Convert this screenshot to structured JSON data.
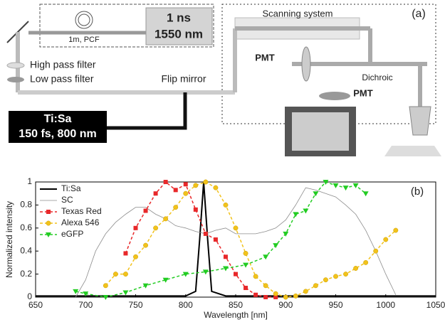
{
  "diagram": {
    "pcf_label": "1m, PCF",
    "source_line1": "1 ns",
    "source_line2": "1550 nm",
    "scanning": "Scanning system",
    "panel": "(a)",
    "high_pass": "High pass filter",
    "low_pass": "Low pass filter",
    "flip_mirror": "Flip mirror",
    "pmt_1": "PMT",
    "pmt_2": "PMT",
    "dichroic": "Dichroic",
    "laser_line1": "Ti:Sa",
    "laser_line2": "150 fs, 800 nm"
  },
  "chart_data": {
    "type": "line",
    "xlabel": "Wavelength [nm]",
    "ylabel": "Normalized intensity",
    "annotation": "(b)",
    "legend": "upper left",
    "xlim": [
      650,
      1050
    ],
    "xticks": [
      650,
      700,
      750,
      800,
      850,
      900,
      950,
      1000,
      1050
    ],
    "ylim": [
      0,
      1
    ],
    "yticks": [
      0,
      0.2,
      0.4,
      0.6,
      0.8,
      1
    ],
    "series": [
      {
        "name": "Ti:Sa",
        "color": "#000000",
        "x": [
          650,
          800,
          810,
          814,
          818,
          822,
          826,
          840,
          1050
        ],
        "values": [
          0.01,
          0.01,
          0.05,
          0.5,
          1,
          0.5,
          0.05,
          0.01,
          0.01
        ]
      },
      {
        "name": "SC",
        "color": "#8c8c8c",
        "x": [
          690,
          700,
          710,
          720,
          730,
          740,
          750,
          760,
          770,
          780,
          790,
          800,
          810,
          820,
          830,
          840,
          850,
          860,
          870,
          880,
          890,
          900,
          910,
          920,
          930,
          940,
          950,
          960,
          970,
          980,
          990,
          1000,
          1010
        ],
        "values": [
          0,
          0.15,
          0.4,
          0.55,
          0.65,
          0.72,
          0.78,
          0.78,
          0.72,
          0.68,
          0.62,
          0.6,
          0.57,
          0.55,
          0.58,
          0.6,
          0.55,
          0.55,
          0.55,
          0.57,
          0.6,
          0.67,
          0.8,
          0.95,
          0.93,
          0.9,
          0.87,
          0.8,
          0.72,
          0.58,
          0.4,
          0.2,
          0.02
        ]
      },
      {
        "name": "Texas Red",
        "color": "#e8282a",
        "x": [
          740,
          750,
          760,
          770,
          780,
          790,
          800,
          810,
          820,
          830,
          840,
          850,
          860,
          870,
          880,
          890
        ],
        "values": [
          0.38,
          0.6,
          0.75,
          0.9,
          1,
          0.93,
          0.98,
          0.76,
          0.55,
          0.5,
          0.35,
          0.2,
          0.08,
          0.02,
          0,
          0
        ]
      },
      {
        "name": "Alexa 546",
        "color": "#f2c21b",
        "x": [
          720,
          730,
          740,
          750,
          760,
          770,
          780,
          790,
          800,
          810,
          820,
          830,
          840,
          850,
          860,
          870,
          880,
          890,
          900,
          910,
          920,
          930,
          940,
          950,
          960,
          970,
          980,
          990,
          1000,
          1010
        ],
        "values": [
          0.1,
          0.2,
          0.2,
          0.35,
          0.45,
          0.6,
          0.68,
          0.78,
          0.9,
          0.97,
          1,
          0.95,
          0.8,
          0.6,
          0.38,
          0.18,
          0.1,
          0.03,
          0,
          0.01,
          0.05,
          0.1,
          0.15,
          0.18,
          0.2,
          0.25,
          0.3,
          0.4,
          0.5,
          0.58
        ]
      },
      {
        "name": "eGFP",
        "color": "#22cc22",
        "x": [
          690,
          700,
          720,
          740,
          760,
          780,
          800,
          820,
          840,
          860,
          880,
          890,
          900,
          910,
          920,
          930,
          940,
          950,
          960,
          970,
          980
        ],
        "values": [
          0.05,
          0.03,
          0,
          0.04,
          0.1,
          0.15,
          0.2,
          0.22,
          0.25,
          0.28,
          0.35,
          0.45,
          0.55,
          0.72,
          0.75,
          0.9,
          1,
          0.97,
          0.95,
          0.97,
          0.9
        ]
      }
    ]
  }
}
